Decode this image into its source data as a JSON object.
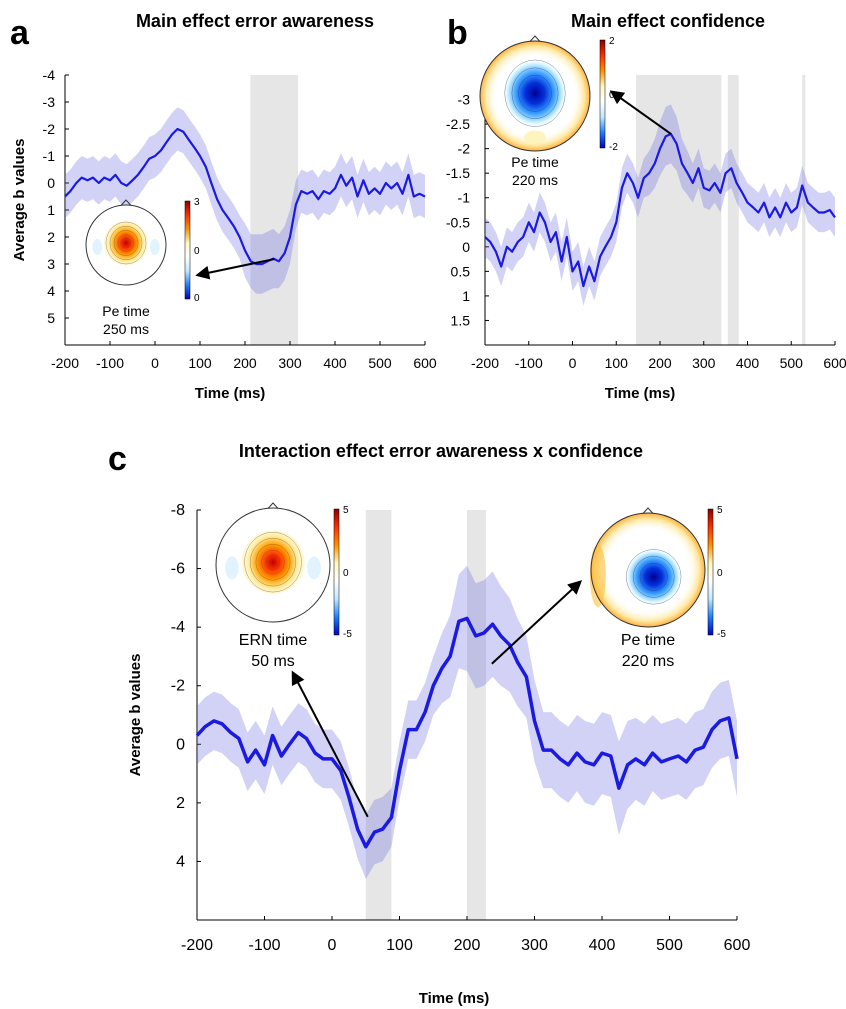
{
  "chart_data": [
    {
      "panel": "a",
      "type": "line",
      "title": "Main effect error awareness",
      "xlabel": "Time (ms)",
      "ylabel": "Average b values",
      "xlim": [
        -200,
        600
      ],
      "ylim": [
        -4,
        6
      ],
      "y_reversed": true,
      "xticks": [
        "-200",
        "-100",
        "0",
        "100",
        "200",
        "300",
        "400",
        "500",
        "600"
      ],
      "yticks": [
        "-4",
        "-3",
        "-2",
        "-1",
        "0",
        "1",
        "2",
        "3",
        "4",
        "5"
      ],
      "significant_windows": [
        [
          212,
          318
        ]
      ],
      "series": [
        {
          "x": [
            -200,
            -188,
            -175,
            -163,
            -150,
            -138,
            -125,
            -113,
            -100,
            -88,
            -75,
            -63,
            -50,
            -38,
            -25,
            -13,
            0,
            13,
            25,
            38,
            50,
            63,
            75,
            88,
            100,
            113,
            125,
            138,
            150,
            163,
            175,
            188,
            200,
            213,
            225,
            238,
            250,
            263,
            275,
            288,
            300,
            313,
            325,
            338,
            350,
            363,
            375,
            388,
            400,
            413,
            425,
            438,
            450,
            463,
            475,
            488,
            500,
            513,
            525,
            538,
            550,
            563,
            575,
            588,
            600
          ],
          "y": [
            0.5,
            0.3,
            0.0,
            -0.2,
            -0.1,
            -0.2,
            0.0,
            -0.2,
            -0.1,
            -0.3,
            0.0,
            0.1,
            -0.1,
            -0.3,
            -0.6,
            -0.9,
            -1.0,
            -1.2,
            -1.5,
            -1.8,
            -2.0,
            -1.9,
            -1.6,
            -1.3,
            -1.0,
            -0.6,
            0.0,
            0.6,
            1.0,
            1.3,
            1.6,
            2.0,
            2.5,
            2.9,
            3.0,
            3.0,
            2.9,
            2.8,
            2.9,
            2.6,
            2.0,
            0.8,
            0.3,
            0.4,
            0.3,
            0.6,
            0.3,
            0.4,
            0.2,
            -0.3,
            0.1,
            -0.2,
            0.5,
            -0.1,
            0.4,
            0.2,
            0.4,
            0.0,
            0.2,
            0.0,
            0.4,
            -0.3,
            0.5,
            0.4,
            0.5
          ],
          "ci": [
            0.8,
            0.8,
            0.8,
            0.8,
            0.8,
            0.8,
            0.8,
            0.8,
            0.8,
            0.8,
            0.8,
            0.8,
            0.8,
            0.8,
            0.8,
            0.8,
            0.8,
            0.8,
            0.8,
            0.8,
            0.8,
            0.8,
            0.8,
            0.8,
            0.8,
            0.8,
            0.8,
            0.8,
            0.8,
            0.8,
            0.8,
            0.8,
            1.0,
            1.0,
            1.1,
            1.1,
            1.1,
            1.1,
            1.0,
            1.0,
            1.0,
            0.9,
            0.8,
            0.8,
            0.8,
            0.8,
            0.8,
            0.8,
            0.8,
            0.8,
            0.8,
            0.8,
            0.8,
            0.8,
            0.8,
            0.8,
            0.8,
            0.8,
            0.8,
            0.8,
            0.8,
            0.8,
            0.8,
            0.8,
            0.8
          ]
        }
      ],
      "topomap": {
        "label": "Pe time",
        "time": "250 ms",
        "arrow_to_ms": 265,
        "colorbar_ticks": [
          "3",
          "0",
          "0"
        ],
        "colorbar_colors": [
          "#8b0000",
          "#ff3000",
          "#ff9000",
          "#fff8c0",
          "#ffffff",
          "#c0e8ff",
          "#2080ff",
          "#0000c0"
        ]
      }
    },
    {
      "panel": "b",
      "type": "line",
      "title": "Main effect confidence",
      "xlabel": "Time (ms)",
      "ylabel": "",
      "xlim": [
        -200,
        600
      ],
      "ylim": [
        -3.5,
        2.0
      ],
      "y_reversed": true,
      "xticks": [
        "-200",
        "-100",
        "0",
        "100",
        "200",
        "300",
        "400",
        "500",
        "600"
      ],
      "yticks": [
        "-3",
        "-2.5",
        "-2",
        "-1.5",
        "-1",
        "-0.5",
        "0",
        "0.5",
        "1",
        "1.5"
      ],
      "significant_windows": [
        [
          145,
          340
        ],
        [
          355,
          380
        ],
        [
          525,
          532
        ]
      ],
      "series": [
        {
          "x": [
            -200,
            -188,
            -175,
            -163,
            -150,
            -138,
            -125,
            -113,
            -100,
            -88,
            -75,
            -63,
            -50,
            -38,
            -25,
            -13,
            0,
            13,
            25,
            38,
            50,
            63,
            75,
            88,
            100,
            113,
            125,
            138,
            150,
            163,
            175,
            188,
            200,
            213,
            225,
            238,
            250,
            263,
            275,
            288,
            300,
            313,
            325,
            338,
            350,
            363,
            375,
            388,
            400,
            413,
            425,
            438,
            450,
            463,
            475,
            488,
            500,
            513,
            525,
            538,
            550,
            563,
            575,
            588,
            600
          ],
          "y": [
            -0.2,
            -0.1,
            0.1,
            0.4,
            0.0,
            0.1,
            -0.1,
            -0.2,
            -0.5,
            -0.3,
            -0.7,
            -0.5,
            -0.1,
            -0.3,
            0.3,
            -0.2,
            0.5,
            0.3,
            0.8,
            0.4,
            0.7,
            0.2,
            0.0,
            -0.2,
            -0.5,
            -1.2,
            -1.5,
            -1.3,
            -1.0,
            -1.4,
            -1.5,
            -1.7,
            -2.0,
            -2.25,
            -2.3,
            -2.1,
            -1.7,
            -1.5,
            -1.3,
            -1.6,
            -1.2,
            -1.15,
            -1.3,
            -1.1,
            -1.5,
            -1.6,
            -1.3,
            -1.1,
            -0.9,
            -0.8,
            -0.7,
            -0.9,
            -0.6,
            -0.8,
            -0.6,
            -0.9,
            -0.7,
            -0.8,
            -1.25,
            -0.9,
            -0.8,
            -0.7,
            -0.7,
            -0.75,
            -0.6
          ],
          "ci": [
            0.4,
            0.4,
            0.4,
            0.4,
            0.4,
            0.4,
            0.4,
            0.4,
            0.4,
            0.4,
            0.4,
            0.4,
            0.4,
            0.4,
            0.4,
            0.4,
            0.4,
            0.4,
            0.4,
            0.4,
            0.4,
            0.4,
            0.4,
            0.4,
            0.4,
            0.4,
            0.4,
            0.4,
            0.4,
            0.4,
            0.45,
            0.5,
            0.55,
            0.6,
            0.6,
            0.55,
            0.5,
            0.45,
            0.4,
            0.4,
            0.4,
            0.4,
            0.4,
            0.4,
            0.4,
            0.4,
            0.4,
            0.4,
            0.4,
            0.4,
            0.4,
            0.4,
            0.4,
            0.4,
            0.4,
            0.4,
            0.4,
            0.4,
            0.4,
            0.4,
            0.4,
            0.4,
            0.4,
            0.4,
            0.4
          ]
        }
      ],
      "topomap": {
        "label": "Pe time",
        "time": "220 ms",
        "arrow_to_ms": 225,
        "colorbar_ticks": [
          "2",
          "0",
          "-2"
        ],
        "colorbar_colors": [
          "#8b0000",
          "#ff3000",
          "#ff9000",
          "#fff8c0",
          "#ffffff",
          "#c0e8ff",
          "#2080ff",
          "#0000c0"
        ]
      }
    },
    {
      "panel": "c",
      "type": "line",
      "title": "Interaction effect error awareness x confidence",
      "xlabel": "Time (ms)",
      "ylabel": "Average b values",
      "xlim": [
        -200,
        600
      ],
      "ylim": [
        -8,
        6
      ],
      "y_reversed": true,
      "xticks": [
        "-200",
        "-100",
        "0",
        "100",
        "200",
        "300",
        "400",
        "500",
        "600"
      ],
      "yticks": [
        "-8",
        "-6",
        "-4",
        "-2",
        "0",
        "2",
        "4"
      ],
      "significant_windows": [
        [
          50,
          88
        ],
        [
          200,
          228
        ]
      ],
      "series": [
        {
          "x": [
            -200,
            -188,
            -175,
            -163,
            -150,
            -138,
            -125,
            -113,
            -100,
            -88,
            -75,
            -63,
            -50,
            -38,
            -25,
            -13,
            0,
            13,
            25,
            38,
            50,
            63,
            75,
            88,
            100,
            113,
            125,
            138,
            150,
            163,
            175,
            188,
            200,
            213,
            225,
            238,
            250,
            263,
            275,
            288,
            300,
            313,
            325,
            338,
            350,
            363,
            375,
            388,
            400,
            413,
            425,
            438,
            450,
            463,
            475,
            488,
            500,
            513,
            525,
            538,
            550,
            563,
            575,
            588,
            600
          ],
          "y": [
            -0.3,
            -0.6,
            -0.8,
            -0.7,
            -0.4,
            -0.2,
            0.6,
            0.2,
            0.7,
            -0.3,
            0.4,
            0.0,
            -0.4,
            -0.2,
            0.3,
            0.5,
            0.5,
            0.9,
            1.8,
            2.9,
            3.5,
            3.0,
            2.9,
            2.5,
            0.9,
            -0.5,
            -0.5,
            -1.1,
            -2.0,
            -2.6,
            -3.0,
            -4.2,
            -4.3,
            -3.7,
            -3.8,
            -4.1,
            -3.7,
            -3.4,
            -2.8,
            -2.3,
            -0.8,
            0.2,
            0.2,
            0.5,
            0.7,
            0.3,
            0.6,
            0.7,
            0.3,
            0.4,
            1.5,
            0.7,
            0.5,
            0.7,
            0.3,
            0.6,
            0.5,
            0.4,
            0.6,
            0.2,
            0.1,
            -0.5,
            -0.8,
            -0.9,
            0.5
          ],
          "ci": [
            1.0,
            1.0,
            1.0,
            1.0,
            1.0,
            1.0,
            1.0,
            1.0,
            1.0,
            1.0,
            1.0,
            1.0,
            1.0,
            1.0,
            1.0,
            1.0,
            1.0,
            1.0,
            1.0,
            1.0,
            1.1,
            1.1,
            1.1,
            1.0,
            1.0,
            1.0,
            1.0,
            1.0,
            1.0,
            1.2,
            1.4,
            1.6,
            1.8,
            1.8,
            1.8,
            1.8,
            1.7,
            1.6,
            1.5,
            1.4,
            1.4,
            1.3,
            1.3,
            1.3,
            1.3,
            1.3,
            1.4,
            1.4,
            1.4,
            1.4,
            1.6,
            1.5,
            1.4,
            1.4,
            1.3,
            1.3,
            1.3,
            1.3,
            1.3,
            1.3,
            1.3,
            1.3,
            1.3,
            1.3,
            1.3
          ]
        }
      ],
      "topomaps": [
        {
          "label": "ERN time",
          "time": "50 ms",
          "arrow_to_ms": 50,
          "colorbar_ticks": [
            "5",
            "0",
            "-5"
          ],
          "colorbar_colors": [
            "#8b0000",
            "#ff3000",
            "#ff9000",
            "#fff8c0",
            "#ffffff",
            "#c0e8ff",
            "#2080ff",
            "#0000c0"
          ]
        },
        {
          "label": "Pe time",
          "time": "220 ms",
          "arrow_to_ms": 222,
          "colorbar_ticks": [
            "5",
            "0",
            "-5"
          ],
          "colorbar_colors": [
            "#8b0000",
            "#ff3000",
            "#ff9000",
            "#fff8c0",
            "#ffffff",
            "#c0e8ff",
            "#2080ff",
            "#0000c0"
          ]
        }
      ]
    }
  ]
}
